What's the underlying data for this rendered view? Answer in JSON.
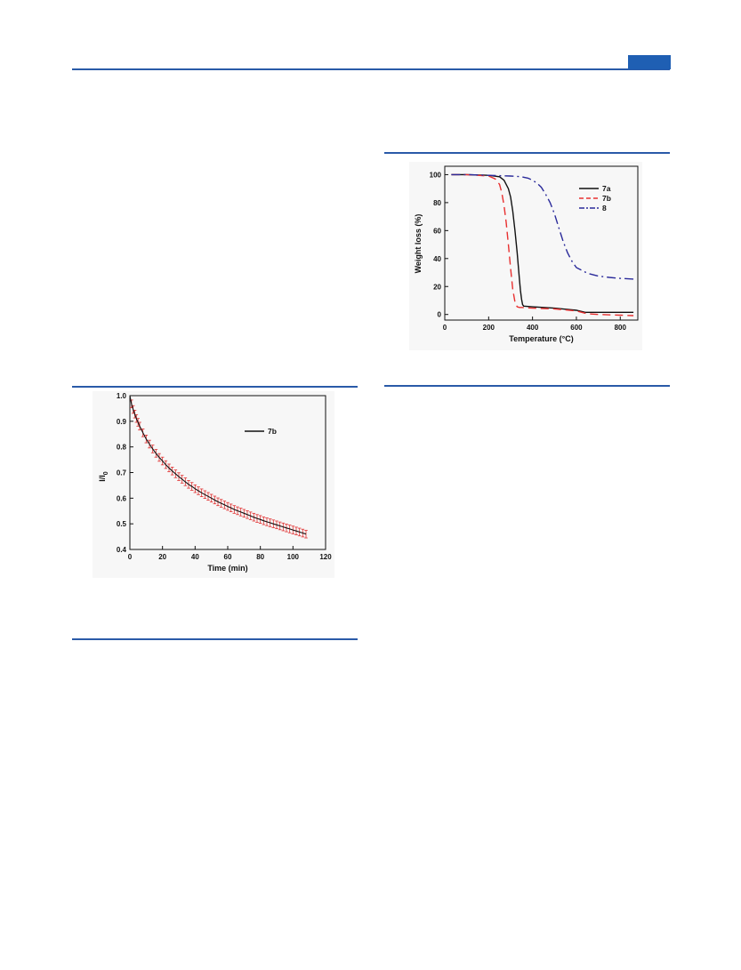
{
  "header": {
    "accent_color": "#1f5fb3"
  },
  "figures": {
    "decay": {
      "chart_data": {
        "type": "line",
        "xlabel": "Time (min)",
        "ylabel": "I/I0",
        "ylabel_main": "I/I",
        "ylabel_sub": "0",
        "xlim": [
          0,
          120
        ],
        "ylim": [
          0.4,
          1.0
        ],
        "xticks": [
          0,
          20,
          40,
          60,
          80,
          100,
          120
        ],
        "yticks": [
          0.4,
          0.5,
          0.6,
          0.7,
          0.8,
          0.9,
          1.0
        ],
        "legend_position": "top-right",
        "series": [
          {
            "name": "7b",
            "color": "#111111",
            "error_color": "#e03030",
            "x": [
              0,
              1,
              2,
              3,
              4,
              5,
              6,
              8,
              10,
              12,
              14,
              16,
              18,
              20,
              22,
              24,
              26,
              28,
              30,
              32,
              34,
              36,
              38,
              40,
              42,
              44,
              46,
              48,
              50,
              52,
              54,
              56,
              58,
              60,
              62,
              64,
              66,
              68,
              70,
              72,
              74,
              76,
              78,
              80,
              82,
              84,
              86,
              88,
              90,
              92,
              94,
              96,
              98,
              100,
              102,
              104,
              106,
              108
            ],
            "y": [
              1.0,
              0.968,
              0.946,
              0.928,
              0.911,
              0.896,
              0.881,
              0.855,
              0.831,
              0.811,
              0.792,
              0.775,
              0.759,
              0.745,
              0.731,
              0.718,
              0.706,
              0.695,
              0.684,
              0.674,
              0.664,
              0.654,
              0.646,
              0.637,
              0.629,
              0.621,
              0.614,
              0.607,
              0.6,
              0.593,
              0.586,
              0.58,
              0.574,
              0.568,
              0.562,
              0.556,
              0.551,
              0.546,
              0.541,
              0.536,
              0.531,
              0.526,
              0.521,
              0.517,
              0.512,
              0.508,
              0.504,
              0.5,
              0.496,
              0.492,
              0.488,
              0.484,
              0.48,
              0.476,
              0.472,
              0.468,
              0.464,
              0.46
            ],
            "error": 0.015
          }
        ]
      }
    },
    "tga": {
      "chart_data": {
        "type": "line",
        "xlabel": "Temperature (°C)",
        "ylabel": "Weight loss (%)",
        "xlim": [
          0,
          880
        ],
        "ylim": [
          -4,
          106
        ],
        "xticks": [
          0,
          200,
          400,
          600,
          800
        ],
        "yticks": [
          0,
          20,
          40,
          60,
          80,
          100
        ],
        "legend_position": "top-right",
        "series": [
          {
            "name": "7a",
            "color": "#111111",
            "dash": "",
            "x": [
              30,
              100,
              200,
              250,
              270,
              290,
              300,
              310,
              320,
              330,
              340,
              345,
              350,
              355,
              360,
              400,
              500,
              600,
              640,
              700,
              800,
              860
            ],
            "y": [
              100,
              100,
              99.5,
              98.5,
              96,
              90,
              84,
              74,
              60,
              44,
              26,
              17,
              11,
              7,
              6,
              5.5,
              4.5,
              3,
              1.5,
              1.5,
              1.5,
              1.5
            ]
          },
          {
            "name": "7b",
            "color": "#e83030",
            "dash": "9,5",
            "x": [
              30,
              100,
              200,
              230,
              250,
              260,
              270,
              280,
              290,
              300,
              310,
              320,
              330,
              340,
              350,
              400,
              500,
              600,
              650,
              700,
              800,
              860
            ],
            "y": [
              100,
              100,
              99,
              97,
              93,
              87,
              78,
              66,
              50,
              33,
              18,
              9,
              5.5,
              5,
              5,
              4.5,
              4,
              2.5,
              0.5,
              0,
              -0.5,
              -0.8
            ]
          },
          {
            "name": "8",
            "color": "#2a2a9a",
            "dash": "10,4,2,4",
            "x": [
              30,
              100,
              200,
              300,
              350,
              380,
              400,
              420,
              440,
              460,
              480,
              500,
              520,
              540,
              560,
              580,
              600,
              650,
              700,
              750,
              800,
              860
            ],
            "y": [
              100,
              100,
              99.5,
              99,
              98.5,
              97.5,
              96,
              94,
              91,
              86,
              80,
              72,
              62,
              52,
              44,
              38,
              33.5,
              29.5,
              27.5,
              26.5,
              25.8,
              25.3
            ]
          }
        ]
      }
    }
  }
}
